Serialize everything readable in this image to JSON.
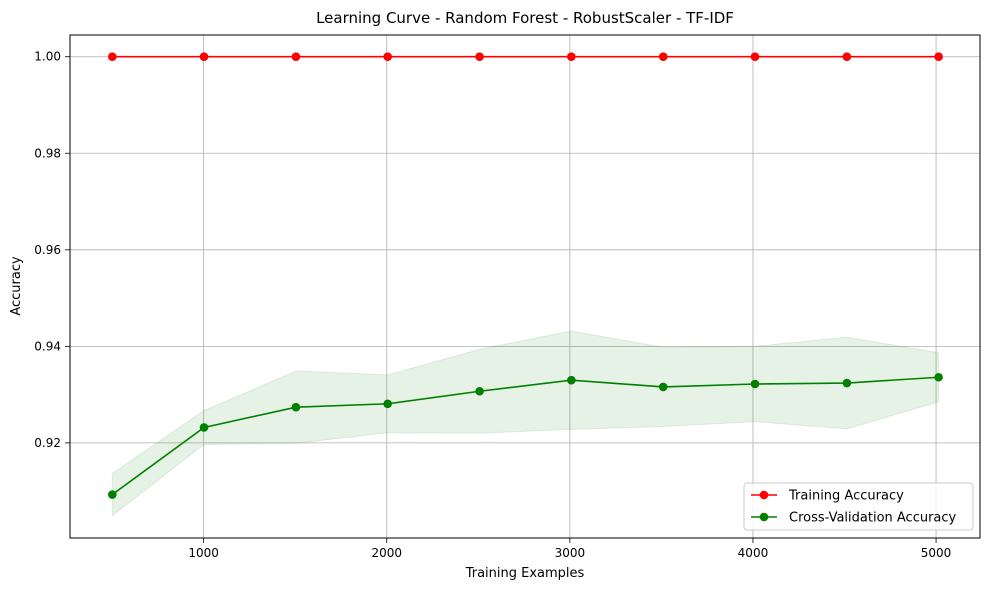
{
  "chart_data": {
    "type": "line",
    "title": "Learning Curve - Random Forest - RobustScaler - TF-IDF",
    "xlabel": "Training Examples",
    "ylabel": "Accuracy",
    "xlim": [
      270,
      5240
    ],
    "ylim": [
      0.9003,
      1.0045
    ],
    "xticks": [
      1000,
      2000,
      3000,
      4000,
      5000
    ],
    "yticks": [
      0.92,
      0.94,
      0.96,
      0.98,
      1.0
    ],
    "ytick_labels": [
      "0.92",
      "0.94",
      "0.96",
      "0.98",
      "1.00"
    ],
    "grid": true,
    "legend_position": "lower-right",
    "x": [
      501,
      1002,
      1504,
      2005,
      2507,
      3008,
      3510,
      4011,
      4513,
      5014
    ],
    "series": [
      {
        "name": "Training Accuracy",
        "color": "#ff0000",
        "marker": "circle",
        "values": [
          1.0,
          1.0,
          1.0,
          1.0,
          1.0,
          1.0,
          1.0,
          1.0,
          1.0,
          1.0
        ]
      },
      {
        "name": "Cross-Validation Accuracy",
        "color": "#008000",
        "marker": "circle",
        "values": [
          0.9093,
          0.9232,
          0.9274,
          0.9281,
          0.9307,
          0.933,
          0.9316,
          0.9322,
          0.9324,
          0.9336
        ],
        "band_upper": [
          0.9137,
          0.9267,
          0.9349,
          0.9341,
          0.9394,
          0.9432,
          0.9398,
          0.94,
          0.9419,
          0.9387
        ],
        "band_lower": [
          0.9049,
          0.9197,
          0.9199,
          0.9221,
          0.922,
          0.9228,
          0.9234,
          0.9244,
          0.9229,
          0.9285
        ],
        "band_color": "#008000",
        "band_opacity": 0.1
      }
    ]
  }
}
